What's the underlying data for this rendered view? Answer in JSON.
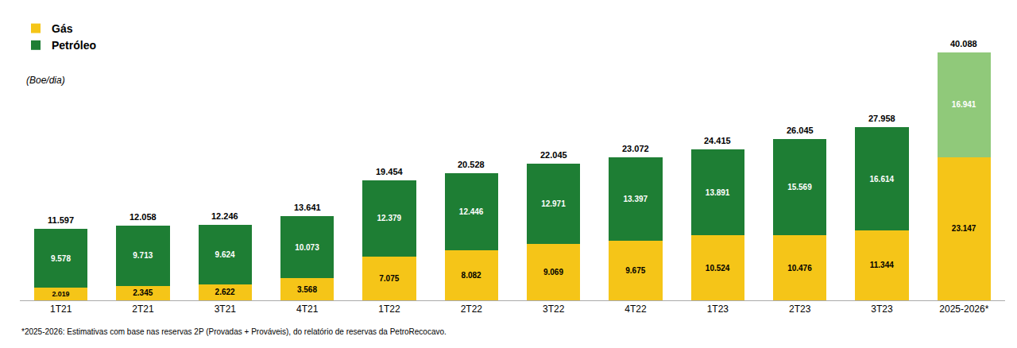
{
  "chart_data": {
    "type": "bar",
    "stacked": true,
    "categories": [
      "1T21",
      "2T21",
      "3T21",
      "4T21",
      "1T22",
      "2T22",
      "3T22",
      "4T22",
      "1T23",
      "2T23",
      "3T23",
      "2025-2026*"
    ],
    "series": [
      {
        "name": "Gás",
        "color": "#F5C518",
        "values": [
          2019,
          2345,
          2622,
          3568,
          7075,
          8082,
          9069,
          9675,
          10524,
          10476,
          11344,
          23147
        ],
        "value_labels": [
          "2.019",
          "2.345",
          "2.622",
          "3.568",
          "7.075",
          "8.082",
          "9.069",
          "9.675",
          "10.524",
          "10.476",
          "11.344",
          "23.147"
        ]
      },
      {
        "name": "Petróleo",
        "color": "#1e7e34",
        "colors": [
          "#1e7e34",
          "#1e7e34",
          "#1e7e34",
          "#1e7e34",
          "#1e7e34",
          "#1e7e34",
          "#1e7e34",
          "#1e7e34",
          "#1e7e34",
          "#1e7e34",
          "#1e7e34",
          "#90c97a"
        ],
        "values": [
          9578,
          9713,
          9624,
          10073,
          12379,
          12446,
          12971,
          13397,
          13891,
          15569,
          16614,
          16941
        ],
        "value_labels": [
          "9.578",
          "9.713",
          "9.624",
          "10.073",
          "12.379",
          "12.446",
          "12.971",
          "13.397",
          "13.891",
          "15.569",
          "16.614",
          "16.941"
        ]
      }
    ],
    "totals": [
      11597,
      12058,
      12246,
      13641,
      19454,
      20528,
      22045,
      23072,
      24415,
      26045,
      27958,
      40088
    ],
    "total_labels": [
      "11.597",
      "12.058",
      "12.246",
      "13.641",
      "19.454",
      "20.528",
      "22.045",
      "23.072",
      "24.415",
      "26.045",
      "27.958",
      "40.088"
    ],
    "data_labels": true,
    "ylim": [
      0,
      46000
    ],
    "tick_labels": "x",
    "grid": false,
    "legend": "upper left",
    "ylabel": "(Boe/dia)",
    "footnote": "*2025-2026: Estimativas com base nas reservas 2P (Provadas + Prováveis), do relatório de reservas da PetroRecocavo."
  }
}
